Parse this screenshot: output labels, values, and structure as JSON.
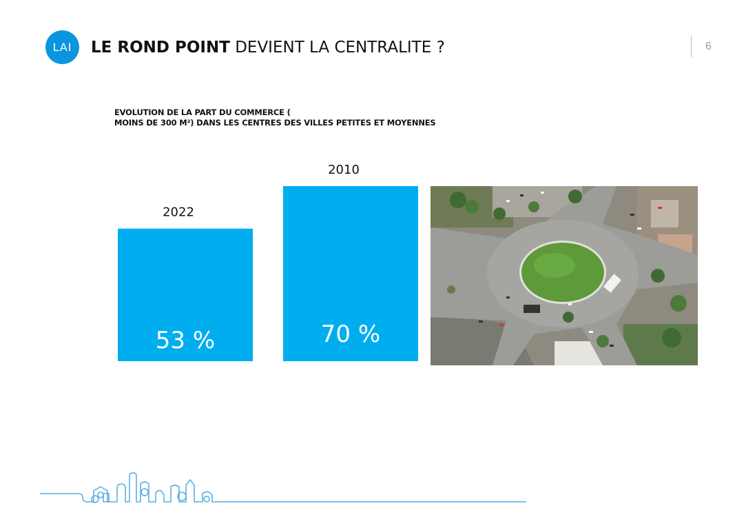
{
  "header": {
    "logo_text": "LAI",
    "title_bold": "LE ROND POINT",
    "title_rest": " DEVIENT LA CENTRALITE ?",
    "page_number": "6"
  },
  "chart_data": {
    "type": "bar",
    "title_lines": [
      "EVOLUTION DE LA PART DU COMMERCE (",
      "MOINS DE 300 M²) DANS LES CENTRES DES VILLES PETITES ET MOYENNES"
    ],
    "categories": [
      "2022",
      "2010"
    ],
    "values": [
      53,
      70
    ],
    "value_labels": [
      "53 %",
      "70 %"
    ],
    "ylim": [
      0,
      100
    ],
    "bar_color": "#00aeef",
    "label_color": "#ffffff"
  },
  "image": {
    "subject": "roundabout-aerial-photo"
  },
  "colors": {
    "accent": "#0b95de",
    "skyline": "#5aaee3"
  }
}
